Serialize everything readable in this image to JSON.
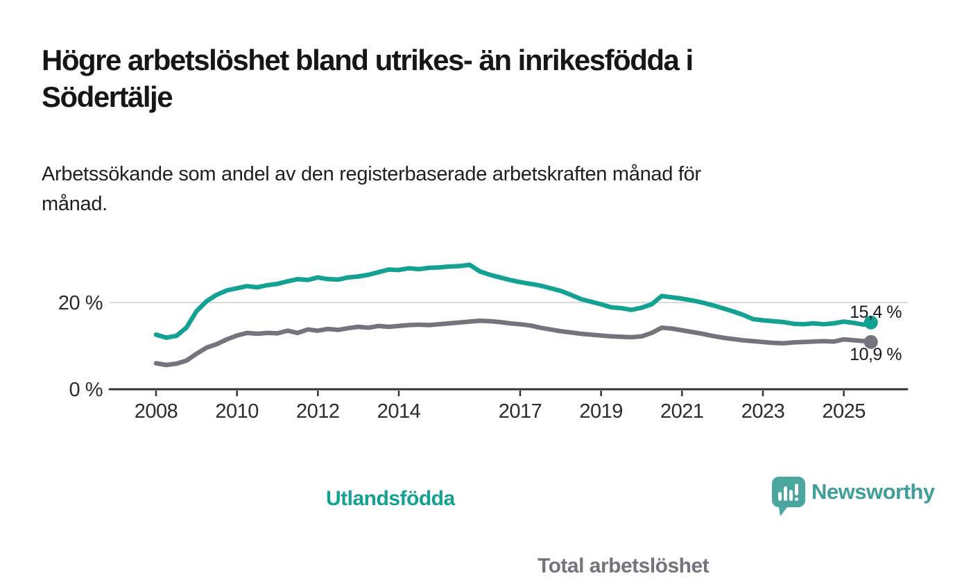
{
  "header": {
    "title_lines": [
      "Högre arbetslöshet bland utrikes- än inrikesfödda i",
      "Södertälje"
    ],
    "subtitle_lines": [
      "Arbetssökande som andel av den registerbaserade arbetskraften månad för",
      "månad."
    ]
  },
  "chart_data": {
    "type": "line",
    "title": "Högre arbetslöshet bland utrikes- än inrikesfödda i Södertälje",
    "subtitle": "Arbetssökande som andel av den registerbaserade arbetskraften månad för månad.",
    "unit": "%",
    "xlim": [
      2006.85,
      2026.6
    ],
    "ylim": [
      0,
      32
    ],
    "grid": "horizontal gridline at 20 % only",
    "legend_position": "inline labels on lines",
    "x_ticks": [
      {
        "value": 2008,
        "label": "2008"
      },
      {
        "value": 2010,
        "label": "2010"
      },
      {
        "value": 2012,
        "label": "2012"
      },
      {
        "value": 2014,
        "label": "2014"
      },
      {
        "value": 2017,
        "label": "2017"
      },
      {
        "value": 2019,
        "label": "2019"
      },
      {
        "value": 2021,
        "label": "2021"
      },
      {
        "value": 2023,
        "label": "2023"
      },
      {
        "value": 2025,
        "label": "2025"
      }
    ],
    "y_ticks": [
      {
        "value": 0,
        "label": "0 %"
      },
      {
        "value": 20,
        "label": "20 %"
      }
    ],
    "axis_color": "#333333",
    "grid_color": "#d9d9d9",
    "series": [
      {
        "name": "Utlandsfödda",
        "color": "#12a192",
        "end_label": "15,4 %",
        "end_value": 15.4,
        "points": [
          [
            2008,
            12.6
          ],
          [
            2008.25,
            11.9
          ],
          [
            2008.5,
            12.3
          ],
          [
            2008.75,
            14.2
          ],
          [
            2009,
            18
          ],
          [
            2009.25,
            20.3
          ],
          [
            2009.5,
            21.8
          ],
          [
            2009.75,
            22.8
          ],
          [
            2010,
            23.3
          ],
          [
            2010.25,
            23.8
          ],
          [
            2010.5,
            23.5
          ],
          [
            2010.75,
            24
          ],
          [
            2011,
            24.3
          ],
          [
            2011.25,
            24.9
          ],
          [
            2011.5,
            25.4
          ],
          [
            2011.75,
            25.2
          ],
          [
            2012,
            25.8
          ],
          [
            2012.25,
            25.4
          ],
          [
            2012.5,
            25.3
          ],
          [
            2012.75,
            25.8
          ],
          [
            2013,
            26
          ],
          [
            2013.25,
            26.4
          ],
          [
            2013.5,
            27
          ],
          [
            2013.75,
            27.6
          ],
          [
            2014,
            27.5
          ],
          [
            2014.25,
            27.9
          ],
          [
            2014.5,
            27.7
          ],
          [
            2014.75,
            28
          ],
          [
            2015,
            28.1
          ],
          [
            2015.25,
            28.3
          ],
          [
            2015.5,
            28.4
          ],
          [
            2015.75,
            28.7
          ],
          [
            2016,
            27.2
          ],
          [
            2016.25,
            26.4
          ],
          [
            2016.5,
            25.8
          ],
          [
            2016.75,
            25.2
          ],
          [
            2017,
            24.7
          ],
          [
            2017.25,
            24.3
          ],
          [
            2017.5,
            23.9
          ],
          [
            2017.75,
            23.3
          ],
          [
            2018,
            22.7
          ],
          [
            2018.25,
            21.8
          ],
          [
            2018.5,
            20.8
          ],
          [
            2018.75,
            20.2
          ],
          [
            2019,
            19.6
          ],
          [
            2019.25,
            18.9
          ],
          [
            2019.5,
            18.7
          ],
          [
            2019.75,
            18.3
          ],
          [
            2020,
            18.8
          ],
          [
            2020.25,
            19.6
          ],
          [
            2020.5,
            21.5
          ],
          [
            2020.75,
            21.2
          ],
          [
            2021,
            20.9
          ],
          [
            2021.25,
            20.5
          ],
          [
            2021.5,
            20
          ],
          [
            2021.75,
            19.4
          ],
          [
            2022,
            18.7
          ],
          [
            2022.25,
            18
          ],
          [
            2022.5,
            17.2
          ],
          [
            2022.75,
            16.2
          ],
          [
            2023,
            15.9
          ],
          [
            2023.25,
            15.7
          ],
          [
            2023.5,
            15.5
          ],
          [
            2023.75,
            15.1
          ],
          [
            2024,
            15
          ],
          [
            2024.25,
            15.2
          ],
          [
            2024.5,
            15
          ],
          [
            2024.75,
            15.2
          ],
          [
            2025,
            15.6
          ],
          [
            2025.25,
            15.3
          ],
          [
            2025.5,
            14.9
          ],
          [
            2025.67,
            15.4
          ]
        ]
      },
      {
        "name": "Total arbetslöshet",
        "color": "#74747c",
        "end_label": "10,9 %",
        "end_value": 10.9,
        "points": [
          [
            2008,
            6
          ],
          [
            2008.25,
            5.6
          ],
          [
            2008.5,
            5.9
          ],
          [
            2008.75,
            6.6
          ],
          [
            2009,
            8.2
          ],
          [
            2009.25,
            9.6
          ],
          [
            2009.5,
            10.4
          ],
          [
            2009.75,
            11.5
          ],
          [
            2010,
            12.4
          ],
          [
            2010.25,
            13
          ],
          [
            2010.5,
            12.8
          ],
          [
            2010.75,
            13
          ],
          [
            2011,
            12.9
          ],
          [
            2011.25,
            13.5
          ],
          [
            2011.5,
            13
          ],
          [
            2011.75,
            13.8
          ],
          [
            2012,
            13.5
          ],
          [
            2012.25,
            13.9
          ],
          [
            2012.5,
            13.7
          ],
          [
            2012.75,
            14.1
          ],
          [
            2013,
            14.4
          ],
          [
            2013.25,
            14.2
          ],
          [
            2013.5,
            14.6
          ],
          [
            2013.75,
            14.4
          ],
          [
            2014,
            14.6
          ],
          [
            2014.25,
            14.8
          ],
          [
            2014.5,
            14.9
          ],
          [
            2014.75,
            14.8
          ],
          [
            2015,
            15
          ],
          [
            2015.25,
            15.2
          ],
          [
            2015.5,
            15.4
          ],
          [
            2015.75,
            15.6
          ],
          [
            2016,
            15.8
          ],
          [
            2016.25,
            15.7
          ],
          [
            2016.5,
            15.5
          ],
          [
            2016.75,
            15.2
          ],
          [
            2017,
            15
          ],
          [
            2017.25,
            14.7
          ],
          [
            2017.5,
            14.2
          ],
          [
            2017.75,
            13.8
          ],
          [
            2018,
            13.4
          ],
          [
            2018.25,
            13.1
          ],
          [
            2018.5,
            12.8
          ],
          [
            2018.75,
            12.6
          ],
          [
            2019,
            12.4
          ],
          [
            2019.25,
            12.2
          ],
          [
            2019.5,
            12.1
          ],
          [
            2019.75,
            12
          ],
          [
            2020,
            12.2
          ],
          [
            2020.25,
            13
          ],
          [
            2020.5,
            14.2
          ],
          [
            2020.75,
            14
          ],
          [
            2021,
            13.6
          ],
          [
            2021.25,
            13.2
          ],
          [
            2021.5,
            12.8
          ],
          [
            2021.75,
            12.3
          ],
          [
            2022,
            11.9
          ],
          [
            2022.25,
            11.6
          ],
          [
            2022.5,
            11.3
          ],
          [
            2022.75,
            11.1
          ],
          [
            2023,
            10.9
          ],
          [
            2023.25,
            10.7
          ],
          [
            2023.5,
            10.6
          ],
          [
            2023.75,
            10.8
          ],
          [
            2024,
            10.9
          ],
          [
            2024.25,
            11
          ],
          [
            2024.5,
            11.1
          ],
          [
            2024.75,
            11
          ],
          [
            2025,
            11.5
          ],
          [
            2025.25,
            11.3
          ],
          [
            2025.5,
            11.1
          ],
          [
            2025.67,
            10.9
          ]
        ]
      }
    ]
  },
  "branding": {
    "wordmark": "Newsworthy",
    "logo_color": "#4aa7a0",
    "wordmark_color": "#3f9e98"
  }
}
